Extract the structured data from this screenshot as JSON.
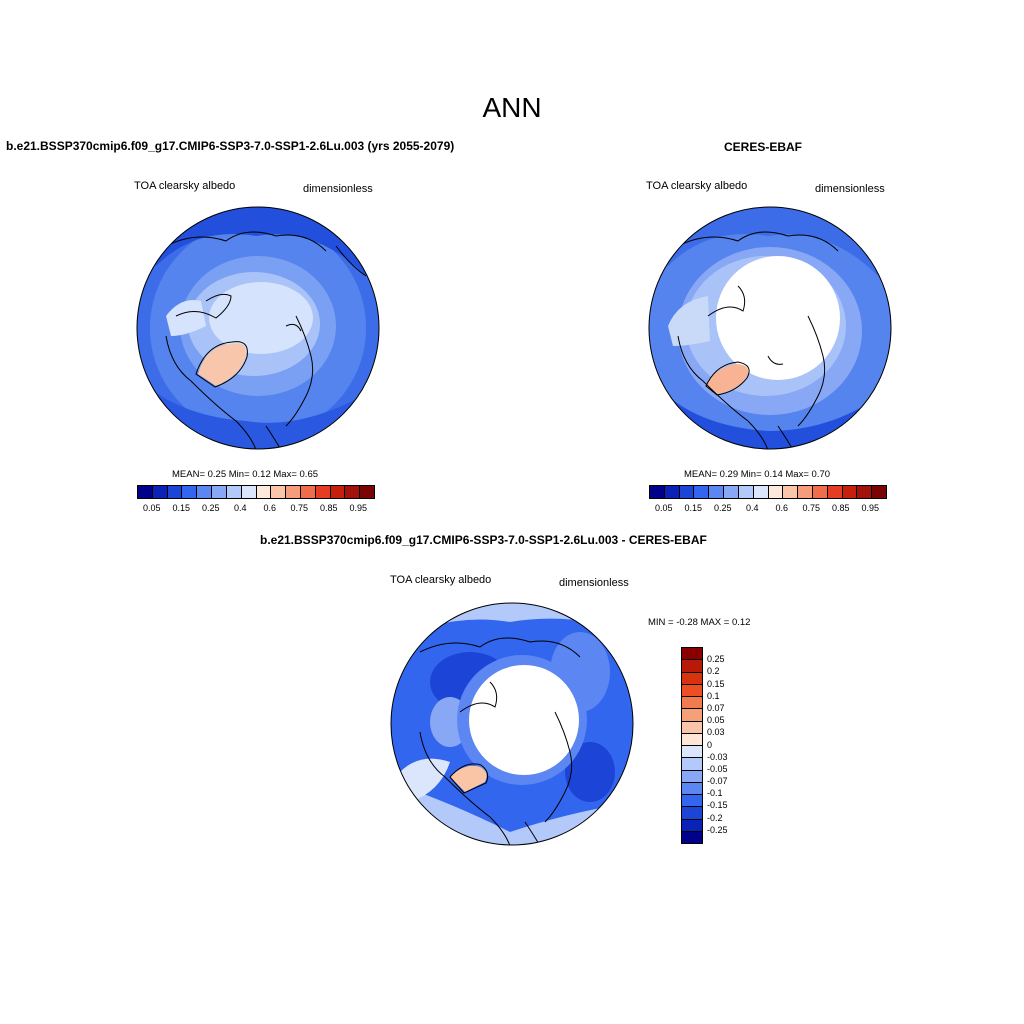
{
  "title": "ANN",
  "panels": {
    "model": {
      "title": "b.e21.BSSP370cmip6.f09_g17.CMIP6-SSP3-7.0-SSP1-2.6Lu.003 (yrs 2055-2079)",
      "variable": "TOA clearsky albedo",
      "units": "dimensionless",
      "stats": "MEAN=   0.25  Min=   0.12  Max=   0.65"
    },
    "obs": {
      "title": "CERES-EBAF",
      "variable": "TOA clearsky albedo",
      "units": "dimensionless",
      "stats": "MEAN=   0.29  Min=   0.14  Max=   0.70"
    },
    "diff": {
      "title": "b.e21.BSSP370cmip6.f09_g17.CMIP6-SSP3-7.0-SSP1-2.6Lu.003 - CERES-EBAF",
      "variable": "TOA clearsky albedo",
      "units": "dimensionless",
      "minmax": "MIN =  -0.28 MAX =   0.12"
    }
  },
  "colorbar_abs": {
    "labels": [
      "0.05",
      "0.15",
      "0.25",
      "0.4",
      "0.6",
      "0.75",
      "0.85",
      "0.95"
    ],
    "colors": [
      "#00008a",
      "#0a22b8",
      "#1c45d8",
      "#3366ee",
      "#5c86f2",
      "#88a8f6",
      "#b3c9fa",
      "#dbe6fd",
      "#fde8db",
      "#fbc5aa",
      "#f69c7c",
      "#ef6d4b",
      "#e53d21",
      "#c71f0e",
      "#a3120a",
      "#7a0303"
    ]
  },
  "colorbar_diff": {
    "labels": [
      "0.25",
      "0.2",
      "0.15",
      "0.1",
      "0.07",
      "0.05",
      "0.03",
      "0",
      "-0.03",
      "-0.05",
      "-0.07",
      "-0.1",
      "-0.15",
      "-0.2",
      "-0.25"
    ],
    "colors": [
      "#8a0000",
      "#b81a0a",
      "#d8330f",
      "#ee4f22",
      "#f27a4f",
      "#f6a07a",
      "#fac4a6",
      "#fde6d6",
      "#dbe6fd",
      "#b3c9fa",
      "#88a8f6",
      "#5c86f2",
      "#3366ee",
      "#1c45d8",
      "#0a22b8",
      "#00008a"
    ]
  }
}
